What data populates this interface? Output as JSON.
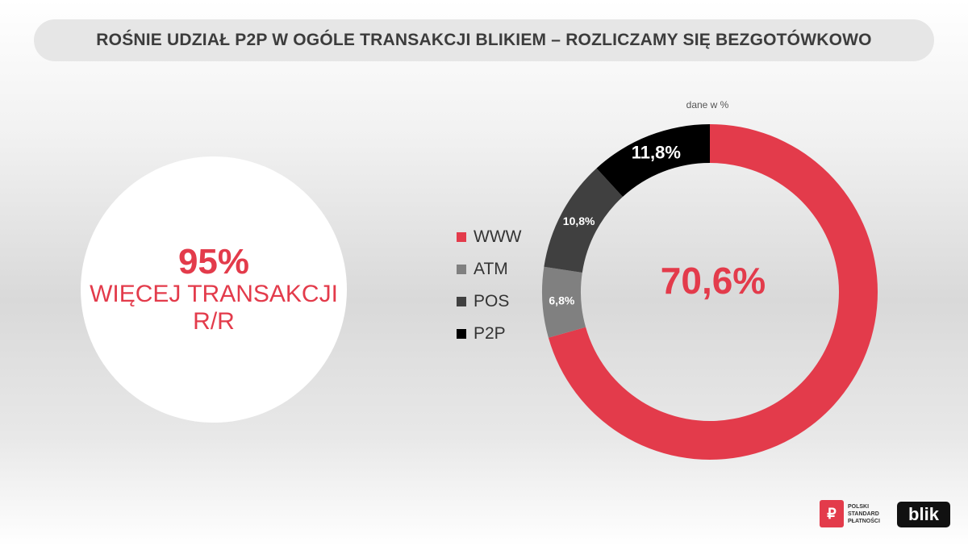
{
  "header": {
    "title": "ROŚNIE UDZIAŁ P2P W OGÓLE TRANSAKCJI BLIKIEM – ROZLICZAMY SIĘ BEZGOTÓWKOWO"
  },
  "note": "dane w %",
  "highlight": {
    "value": "95%",
    "line1": "WIĘCEJ TRANSAKCJI",
    "line2": "R/R"
  },
  "chart_data": {
    "type": "pie",
    "variant": "donut",
    "categories": [
      "WWW",
      "ATM",
      "POS",
      "P2P"
    ],
    "values": [
      70.6,
      6.8,
      10.8,
      11.8
    ],
    "labels": [
      "70,6%",
      "6,8%",
      "10,8%",
      "11,8%"
    ],
    "colors": [
      "#e33b4b",
      "#808080",
      "#404040",
      "#000000"
    ],
    "legend_position": "left"
  },
  "logos": {
    "psp_lines": [
      "POLSKI",
      "STANDARD",
      "PŁATNOŚCI"
    ],
    "blik": "blik"
  }
}
